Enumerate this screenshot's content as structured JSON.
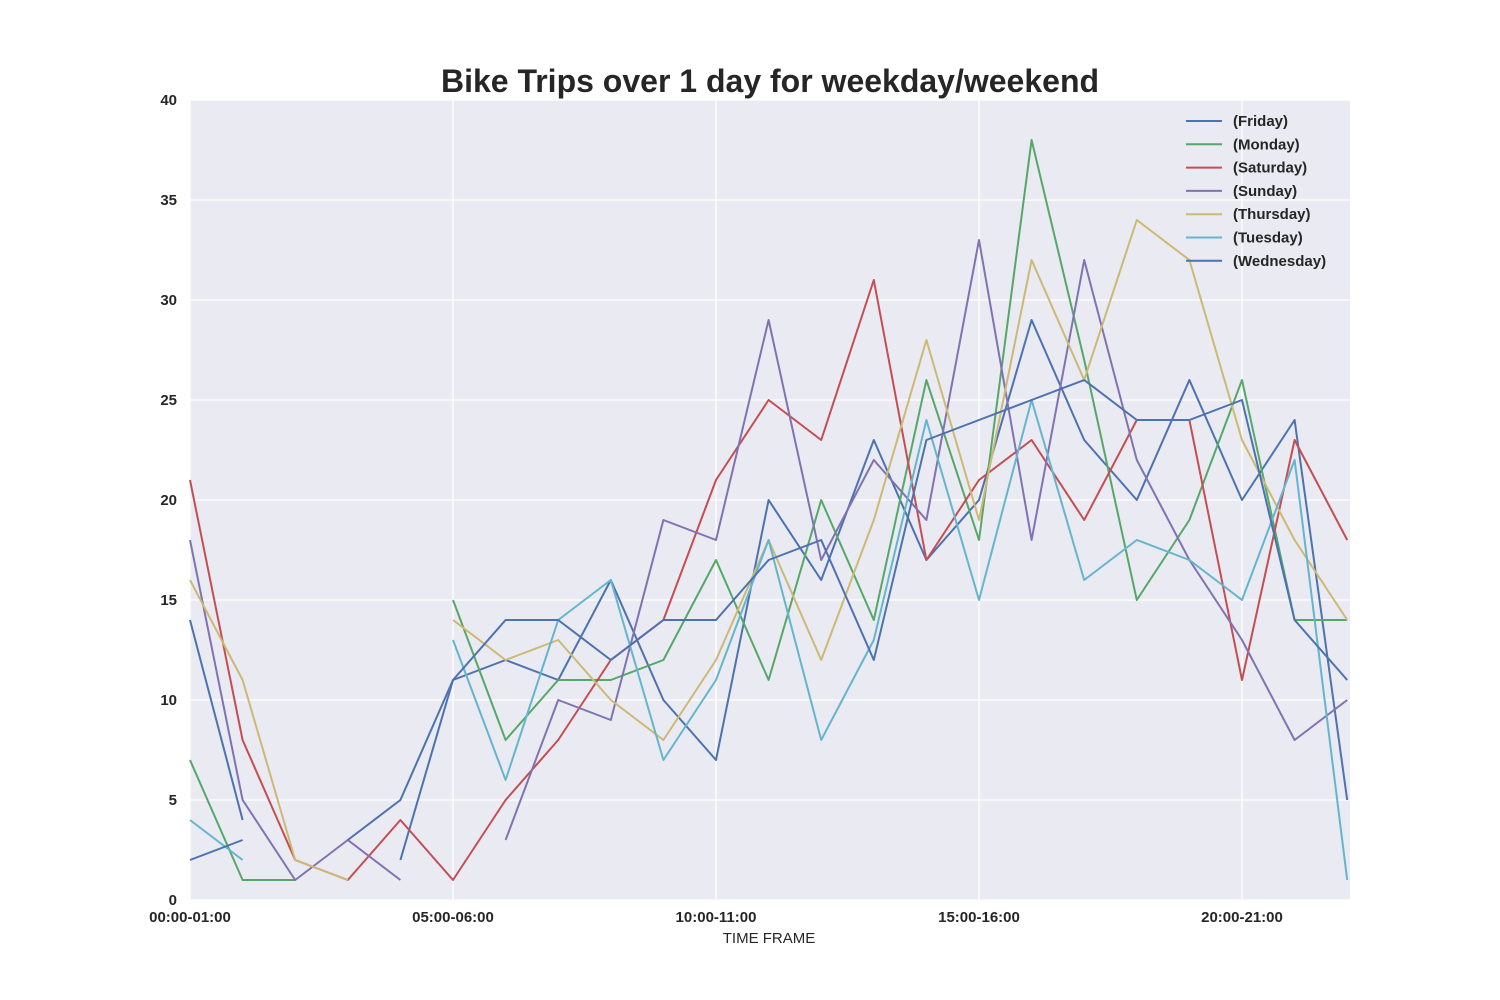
{
  "chart_data": {
    "type": "line",
    "title": "Bike Trips over 1 day for weekday/weekend",
    "xlabel": "TIME FRAME",
    "ylabel": "",
    "ylim": [
      0,
      40
    ],
    "yticks": [
      "0",
      "5",
      "10",
      "15",
      "20",
      "25",
      "30",
      "35",
      "40"
    ],
    "xtick_labels": [
      "00:00-01:00",
      "05:00-06:00",
      "10:00-11:00",
      "15:00-16:00",
      "20:00-21:00"
    ],
    "x": [
      "00:00-01:00",
      "01:00-02:00",
      "02:00-03:00",
      "03:00-04:00",
      "04:00-05:00",
      "05:00-06:00",
      "06:00-07:00",
      "07:00-08:00",
      "08:00-09:00",
      "09:00-10:00",
      "10:00-11:00",
      "11:00-12:00",
      "12:00-13:00",
      "13:00-14:00",
      "14:00-15:00",
      "15:00-16:00",
      "16:00-17:00",
      "17:00-18:00",
      "18:00-19:00",
      "19:00-20:00",
      "20:00-21:00",
      "21:00-22:00",
      "22:00-23:00"
    ],
    "grid": true,
    "legend_position": "top-right",
    "series": [
      {
        "name": "(Friday)",
        "color": "#4c72b0",
        "values": [
          14,
          4,
          null,
          null,
          2,
          11,
          12,
          11,
          16,
          10,
          7,
          20,
          16,
          23,
          17,
          20,
          29,
          23,
          20,
          26,
          20,
          24,
          5
        ]
      },
      {
        "name": "(Monday)",
        "color": "#55a868",
        "values": [
          7,
          1,
          1,
          null,
          null,
          15,
          8,
          11,
          11,
          12,
          17,
          11,
          20,
          14,
          26,
          18,
          38,
          27,
          15,
          19,
          26,
          14,
          14
        ]
      },
      {
        "name": "(Saturday)",
        "color": "#c44e52",
        "values": [
          21,
          8,
          2,
          1,
          4,
          1,
          5,
          8,
          12,
          14,
          21,
          25,
          23,
          31,
          17,
          21,
          23,
          19,
          24,
          24,
          11,
          23,
          18
        ]
      },
      {
        "name": "(Sunday)",
        "color": "#8172b2",
        "values": [
          18,
          5,
          1,
          3,
          1,
          null,
          3,
          10,
          9,
          19,
          18,
          29,
          17,
          22,
          19,
          33,
          18,
          32,
          22,
          17,
          13,
          8,
          10
        ]
      },
      {
        "name": "(Thursday)",
        "color": "#ccb974",
        "values": [
          16,
          11,
          2,
          1,
          null,
          14,
          12,
          13,
          10,
          8,
          12,
          18,
          12,
          19,
          28,
          19,
          32,
          26,
          34,
          32,
          23,
          18,
          14
        ]
      },
      {
        "name": "(Tuesday)",
        "color": "#64b5cd",
        "values": [
          4,
          2,
          null,
          null,
          null,
          13,
          6,
          14,
          16,
          7,
          11,
          18,
          8,
          13,
          24,
          15,
          25,
          16,
          18,
          17,
          15,
          22,
          1
        ]
      },
      {
        "name": "(Wednesday)",
        "color": "#4c72b0",
        "values": [
          2,
          3,
          null,
          3,
          5,
          11,
          14,
          14,
          12,
          14,
          14,
          17,
          18,
          12,
          23,
          24,
          25,
          26,
          24,
          24,
          25,
          14,
          11
        ]
      }
    ]
  }
}
